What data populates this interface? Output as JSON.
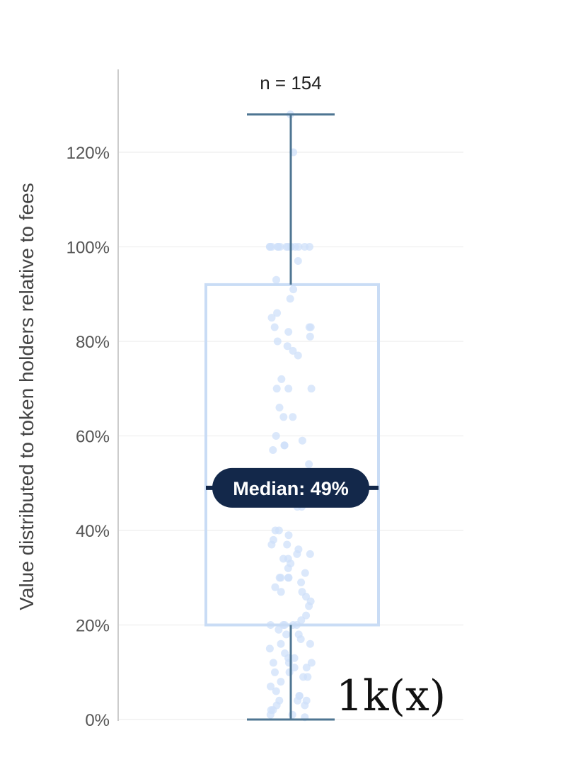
{
  "chart_data": {
    "type": "box",
    "title": "",
    "xlabel": "",
    "ylabel": "Value distributed to token holders relative to fees",
    "ylim": [
      0,
      130
    ],
    "yticks": [
      0,
      20,
      40,
      60,
      80,
      100,
      120
    ],
    "ytick_labels": [
      "0%",
      "20%",
      "40%",
      "60%",
      "80%",
      "100%",
      "120%"
    ],
    "grid": true,
    "sample_label": "n = 154",
    "box": {
      "min": 0,
      "q1": 20,
      "median": 49,
      "q3": 92,
      "max": 128
    },
    "median_label": "Median: 49%",
    "annotation": "1k(x)",
    "colors": {
      "box_edge": "#c9dcf5",
      "whisker": "#4e7592",
      "points": "#cfe0fa",
      "median_badge": "#13284a",
      "grid": "#f1f1f1",
      "axis": "#cccccc"
    },
    "points": [
      128,
      120,
      100,
      100,
      100,
      100,
      100,
      100,
      100,
      100,
      100,
      100,
      100,
      100,
      100,
      100,
      97,
      93,
      91,
      89,
      86,
      85,
      83,
      83,
      83,
      82,
      81,
      80,
      79,
      78,
      77,
      72,
      70,
      70,
      70,
      66,
      64,
      64,
      60,
      59,
      58,
      58,
      57,
      54,
      52,
      50,
      49,
      48,
      47,
      46,
      45,
      45,
      40,
      40,
      39,
      38,
      37,
      37,
      36,
      35,
      35,
      34,
      34,
      33,
      32,
      31,
      30,
      30,
      30,
      30,
      29,
      28,
      27,
      27,
      26,
      25,
      24,
      22,
      21,
      20,
      20,
      20,
      20,
      20,
      19,
      18,
      18,
      17,
      16,
      16,
      15,
      14,
      13,
      13,
      12,
      12,
      12,
      11,
      11,
      10,
      10,
      9,
      9,
      8,
      7,
      6,
      5,
      5,
      4,
      4,
      4,
      3,
      3,
      2,
      2,
      1,
      1,
      0.5
    ]
  }
}
